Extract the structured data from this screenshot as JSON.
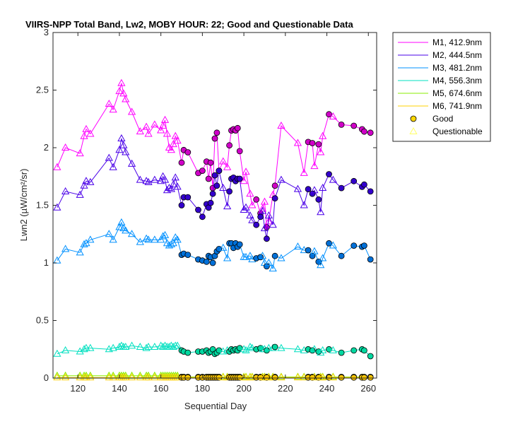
{
  "chart_data": {
    "type": "line",
    "title": "VIIRS-NPP Total Band, Lw2, MOBY HOUR: 22;  Good and Questionable Data",
    "xlabel": "Sequential Day",
    "ylabel": "Lwn2 (µW/cm²/sr)",
    "xlim": [
      108,
      264
    ],
    "ylim": [
      0,
      3
    ],
    "xticks": [
      120,
      140,
      160,
      180,
      200,
      220,
      240,
      260
    ],
    "yticks": [
      0,
      0.5,
      1,
      1.5,
      2,
      2.5,
      3
    ],
    "ytick_labels": [
      "0",
      "0.5",
      "1",
      "1.5",
      "2",
      "2.5",
      "3"
    ],
    "legend_position": "outside-top-right",
    "markers": {
      "good": {
        "label": "Good",
        "shape": "circle",
        "color": "#ffd700"
      },
      "questionable": {
        "label": "Questionable",
        "shape": "triangle",
        "color": "#ffff66"
      }
    },
    "x": [
      110,
      114,
      121,
      123,
      124,
      126,
      135,
      137,
      140,
      141,
      142,
      143,
      146,
      150,
      153,
      154,
      157,
      160,
      161,
      162,
      163,
      164,
      165,
      166,
      167,
      168,
      170,
      171,
      173,
      178,
      180,
      182,
      183,
      184,
      185,
      186,
      187,
      188,
      190,
      192,
      193,
      194,
      195,
      196,
      197,
      198,
      200,
      201,
      203,
      204,
      206,
      208,
      209,
      210,
      211,
      212,
      214,
      215,
      218,
      226,
      229,
      231,
      233,
      234,
      236,
      237,
      238,
      241,
      243,
      247,
      253,
      257,
      258,
      261
    ],
    "quality": [
      "q",
      "q",
      "q",
      "q",
      "q",
      "q",
      "q",
      "q",
      "q",
      "q",
      "q",
      "q",
      "q",
      "q",
      "q",
      "q",
      "q",
      "q",
      "q",
      "q",
      "q",
      "q",
      "q",
      "q",
      "q",
      "q",
      "g",
      "g",
      "g",
      "g",
      "g",
      "g",
      "g",
      "g",
      "g",
      "g",
      "g",
      "g",
      "q",
      "q",
      "g",
      "g",
      "g",
      "g",
      "g",
      "g",
      "q",
      "q",
      "q",
      "q",
      "g",
      "g",
      "q",
      "q",
      "g",
      "q",
      "q",
      "g",
      "q",
      "q",
      "q",
      "g",
      "g",
      "q",
      "g",
      "q",
      "q",
      "g",
      "q",
      "g",
      "g",
      "g",
      "g",
      "g"
    ],
    "series": [
      {
        "name": "M1, 412.9nm",
        "color": "#ff00ff",
        "fill": "#d000c8",
        "values": [
          1.83,
          2.0,
          1.95,
          2.1,
          2.16,
          2.12,
          2.38,
          2.33,
          2.49,
          2.56,
          2.47,
          2.42,
          2.31,
          2.14,
          2.18,
          2.12,
          2.2,
          2.15,
          2.19,
          2.24,
          2.12,
          2.0,
          1.98,
          2.03,
          2.1,
          2.06,
          1.87,
          1.98,
          1.96,
          1.78,
          1.8,
          1.88,
          1.73,
          1.87,
          1.65,
          2.08,
          2.13,
          1.8,
          1.88,
          1.83,
          2.02,
          2.15,
          2.16,
          2.15,
          2.17,
          1.97,
          1.71,
          1.79,
          1.6,
          1.5,
          1.55,
          1.43,
          1.47,
          1.53,
          1.31,
          1.36,
          1.59,
          1.67,
          2.19,
          2.04,
          1.78,
          2.05,
          2.04,
          1.84,
          2.03,
          1.96,
          2.1,
          2.29,
          2.27,
          2.2,
          2.19,
          2.16,
          2.14,
          2.13
        ]
      },
      {
        "name": "M2, 444.5nm",
        "color": "#4a00e8",
        "fill": "#3300cc",
        "values": [
          1.48,
          1.62,
          1.59,
          1.67,
          1.71,
          1.7,
          1.91,
          1.83,
          1.98,
          2.08,
          2.02,
          1.96,
          1.86,
          1.72,
          1.71,
          1.7,
          1.72,
          1.71,
          1.75,
          1.72,
          1.63,
          1.65,
          1.64,
          1.68,
          1.74,
          1.66,
          1.5,
          1.57,
          1.57,
          1.46,
          1.4,
          1.51,
          1.48,
          1.52,
          1.6,
          1.76,
          1.67,
          1.8,
          1.65,
          1.49,
          1.62,
          1.73,
          1.74,
          1.71,
          1.73,
          1.73,
          1.46,
          1.48,
          1.41,
          1.37,
          1.33,
          1.4,
          1.45,
          1.3,
          1.21,
          1.41,
          1.33,
          1.56,
          1.72,
          1.64,
          1.5,
          1.64,
          1.6,
          1.63,
          1.55,
          1.44,
          1.65,
          1.77,
          1.72,
          1.65,
          1.71,
          1.66,
          1.68,
          1.62
        ]
      },
      {
        "name": "M3, 481.2nm",
        "color": "#0090ff",
        "fill": "#0070d8",
        "values": [
          1.02,
          1.12,
          1.09,
          1.16,
          1.17,
          1.2,
          1.25,
          1.2,
          1.31,
          1.35,
          1.3,
          1.28,
          1.25,
          1.18,
          1.21,
          1.2,
          1.2,
          1.2,
          1.23,
          1.24,
          1.17,
          1.15,
          1.16,
          1.17,
          1.22,
          1.2,
          1.07,
          1.08,
          1.07,
          1.03,
          1.02,
          1.01,
          1.06,
          1.05,
          1.0,
          1.06,
          1.1,
          1.12,
          1.13,
          1.04,
          1.17,
          1.17,
          1.13,
          1.17,
          1.14,
          1.16,
          1.05,
          1.05,
          1.06,
          1.03,
          1.04,
          1.05,
          1.06,
          1.0,
          0.97,
          1.0,
          0.95,
          1.06,
          1.04,
          1.14,
          1.11,
          1.11,
          1.06,
          1.1,
          1.01,
          0.98,
          1.04,
          1.17,
          1.15,
          1.06,
          1.15,
          1.14,
          1.15,
          1.03
        ]
      },
      {
        "name": "M4, 556.3nm",
        "color": "#00e0c0",
        "fill": "#00d8a0",
        "values": [
          0.21,
          0.24,
          0.23,
          0.25,
          0.26,
          0.26,
          0.25,
          0.26,
          0.27,
          0.28,
          0.27,
          0.27,
          0.28,
          0.27,
          0.26,
          0.27,
          0.27,
          0.28,
          0.27,
          0.28,
          0.27,
          0.27,
          0.28,
          0.27,
          0.28,
          0.28,
          0.24,
          0.23,
          0.22,
          0.23,
          0.23,
          0.24,
          0.22,
          0.23,
          0.25,
          0.21,
          0.22,
          0.24,
          0.23,
          0.24,
          0.23,
          0.25,
          0.24,
          0.25,
          0.24,
          0.26,
          0.25,
          0.24,
          0.27,
          0.26,
          0.25,
          0.26,
          0.25,
          0.25,
          0.24,
          0.26,
          0.26,
          0.27,
          0.26,
          0.25,
          0.24,
          0.25,
          0.24,
          0.25,
          0.23,
          0.22,
          0.24,
          0.25,
          0.24,
          0.22,
          0.24,
          0.25,
          0.24,
          0.19
        ]
      },
      {
        "name": "M5, 674.6nm",
        "color": "#88ee00",
        "fill": "#66cc00",
        "values": [
          0.02,
          0.02,
          0.02,
          0.02,
          0.02,
          0.02,
          0.02,
          0.02,
          0.02,
          0.02,
          0.02,
          0.02,
          0.02,
          0.02,
          0.02,
          0.02,
          0.02,
          0.02,
          0.02,
          0.02,
          0.02,
          0.02,
          0.02,
          0.02,
          0.02,
          0.02,
          0.01,
          0.01,
          0.01,
          0.01,
          0.01,
          0.01,
          0.01,
          0.01,
          0.01,
          0.01,
          0.01,
          0.01,
          0.01,
          0.01,
          0.01,
          0.01,
          0.01,
          0.01,
          0.01,
          0.01,
          0.01,
          0.01,
          0.01,
          0.01,
          0.01,
          0.01,
          0.01,
          0.01,
          0.01,
          0.01,
          0.01,
          0.01,
          0.01,
          0.01,
          0.01,
          0.01,
          0.01,
          0.01,
          0.01,
          0.01,
          0.01,
          0.01,
          0.01,
          0.01,
          0.01,
          0.01,
          0.01,
          0.01
        ]
      },
      {
        "name": "M6, 741.9nm",
        "color": "#ffd000",
        "fill": "#ffc800",
        "values": [
          0.005,
          0.005,
          0.005,
          0.005,
          0.005,
          0.005,
          0.005,
          0.005,
          0.005,
          0.005,
          0.005,
          0.005,
          0.005,
          0.005,
          0.005,
          0.005,
          0.005,
          0.005,
          0.005,
          0.005,
          0.005,
          0.005,
          0.005,
          0.005,
          0.005,
          0.005,
          0.005,
          0.005,
          0.005,
          0.005,
          0.005,
          0.005,
          0.005,
          0.005,
          0.005,
          0.005,
          0.005,
          0.005,
          0.005,
          0.005,
          0.005,
          0.005,
          0.005,
          0.005,
          0.005,
          0.005,
          0.005,
          0.005,
          0.005,
          0.005,
          0.005,
          0.005,
          0.005,
          0.005,
          0.005,
          0.005,
          0.005,
          0.005,
          0.005,
          0.005,
          0.005,
          0.005,
          0.005,
          0.005,
          0.005,
          0.005,
          0.005,
          0.005,
          0.005,
          0.005,
          0.005,
          0.005,
          0.005,
          0.005
        ]
      }
    ]
  }
}
